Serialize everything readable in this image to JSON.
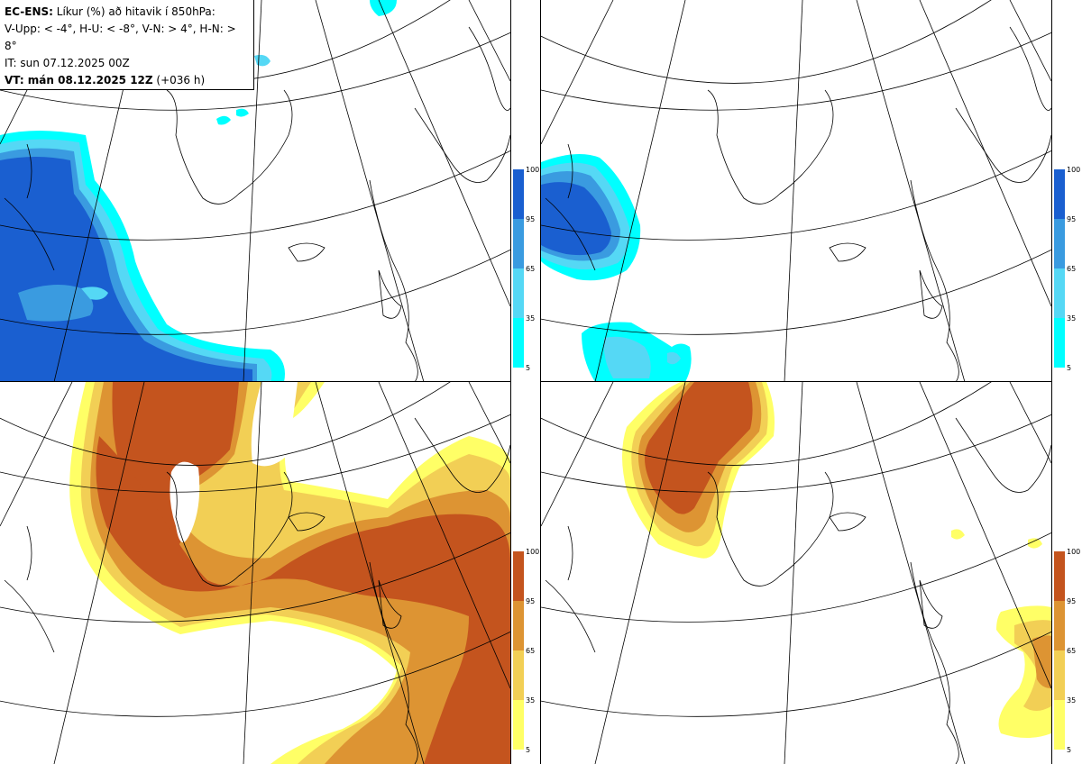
{
  "info": {
    "model": "EC-ENS:",
    "title": "Líkur (%) að hitavik í 850hPa:",
    "legend": "V-Upp: < -4°, H-U: < -8°, V-N: > 4°, H-N: > 8°",
    "issue_time": "IT: sun 07.12.2025 00Z",
    "valid_prefix": "VT: mán 08.12.2025 12Z",
    "valid_suffix": " (+036 h)"
  },
  "colorbar_ticks": [
    "100",
    "95",
    "65",
    "35",
    "5"
  ],
  "colors": {
    "cold": [
      "#00ffff",
      "#55d8f5",
      "#3a9be0",
      "#1a5fd0"
    ],
    "warm": [
      "#ffff66",
      "#f2cf55",
      "#dd9433",
      "#c4541e"
    ],
    "coast": "#000000",
    "grid": "#000000"
  },
  "panels": [
    {
      "name": "V-Upp",
      "type": "cold"
    },
    {
      "name": "H-U",
      "type": "cold"
    },
    {
      "name": "V-N",
      "type": "warm"
    },
    {
      "name": "H-N",
      "type": "warm"
    }
  ]
}
